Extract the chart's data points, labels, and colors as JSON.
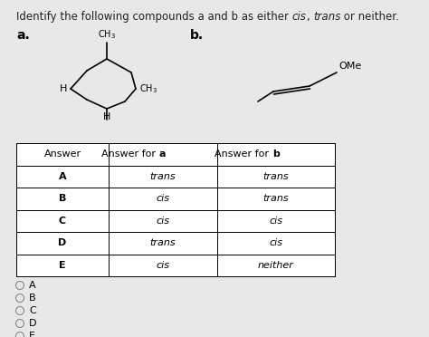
{
  "title_normal1": "Identify the following compounds a and b as either ",
  "title_italic1": "cis",
  "title_normal2": ", ",
  "title_italic2": "trans",
  "title_normal3": " or neither.",
  "label_a": "a.",
  "label_b": "b.",
  "table_headers": [
    "Answer",
    "Answer for a",
    "Answer for b"
  ],
  "table_rows": [
    [
      "A",
      "trans",
      "trans"
    ],
    [
      "B",
      "cis",
      "trans"
    ],
    [
      "C",
      "cis",
      "cis"
    ],
    [
      "D",
      "trans",
      "cis"
    ],
    [
      "E",
      "cis",
      "neither"
    ]
  ],
  "radio_options": [
    "A",
    "B",
    "C",
    "D",
    "E"
  ],
  "bg_color": "#e8e8e8",
  "font_size_title": 8.5,
  "font_size_table_header": 8,
  "font_size_table_data": 8,
  "font_size_radio": 8,
  "font_size_mol_label": 8,
  "font_size_mol_group": 7
}
